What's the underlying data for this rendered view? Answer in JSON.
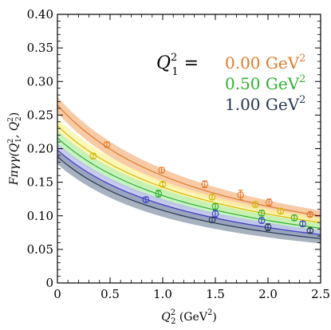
{
  "chart_data": {
    "type": "scatter",
    "xlabel": "Q",
    "xlabel_sup": "2",
    "xlabel_sub": "2",
    "xlabel_unit": " (GeV",
    "xlabel_unit_sup": "2",
    "xlabel_unit_end": ")",
    "ylabel": "Fπγγ(Q",
    "ylabel_sub1": "1",
    "ylabel_sup1": "2",
    "ylabel_mid": ", Q",
    "ylabel_sub2": "2",
    "ylabel_sup2": "2",
    "ylabel_end": ")",
    "xlim": [
      0,
      2.5
    ],
    "ylim": [
      0,
      0.4
    ],
    "xticks": [
      "0",
      "0.5",
      "1.0",
      "1.5",
      "2.0",
      "2.5"
    ],
    "yticks": [
      "0",
      "0.05",
      "0.10",
      "0.15",
      "0.20",
      "0.25",
      "0.30",
      "0.35",
      "0.40"
    ],
    "legend_title": "Q",
    "legend_title_sub": "1",
    "legend_title_sup": "2",
    "legend_eq": " =",
    "series": [
      {
        "name": "0.00 GeV",
        "name_sup": "2",
        "color": "#e07a2a",
        "band_color": "#f5b98a",
        "curve_at_zero": 0.265,
        "curve_scale": 0.66,
        "band_halfwidth": 0.012,
        "points": [
          {
            "x": 0.47,
            "y": 0.206,
            "err": 0.004
          },
          {
            "x": 0.99,
            "y": 0.168,
            "err": 0.004
          },
          {
            "x": 1.4,
            "y": 0.147,
            "err": 0.005
          },
          {
            "x": 1.74,
            "y": 0.131,
            "err": 0.007
          },
          {
            "x": 2.01,
            "y": 0.12,
            "err": 0.005
          },
          {
            "x": 2.4,
            "y": 0.102,
            "err": 0.003
          }
        ]
      },
      {
        "name": "",
        "color": "#d4b800",
        "band_color": "#fbf3a0",
        "curve_at_zero": 0.234,
        "curve_scale": 0.64,
        "band_halfwidth": 0.011,
        "points": [
          {
            "x": 0.34,
            "y": 0.189,
            "err": 0.004
          },
          {
            "x": 1.0,
            "y": 0.147,
            "err": 0.003
          },
          {
            "x": 1.47,
            "y": 0.128,
            "err": 0.004
          },
          {
            "x": 1.88,
            "y": 0.117,
            "err": 0.004
          },
          {
            "x": 2.12,
            "y": 0.107,
            "err": 0.004
          }
        ]
      },
      {
        "name": "0.50 GeV",
        "name_sup": "2",
        "color": "#2fb02f",
        "band_color": "#b6efae",
        "curve_at_zero": 0.216,
        "curve_scale": 0.66,
        "band_halfwidth": 0.011,
        "points": [
          {
            "x": 0.96,
            "y": 0.133,
            "err": 0.005
          },
          {
            "x": 1.5,
            "y": 0.114,
            "err": 0.004
          },
          {
            "x": 1.94,
            "y": 0.104,
            "err": 0.004
          },
          {
            "x": 2.25,
            "y": 0.097,
            "err": 0.004
          }
        ]
      },
      {
        "name": "",
        "color": "#3e3ec8",
        "band_color": "#b8b8ef",
        "curve_at_zero": 0.198,
        "curve_scale": 0.7,
        "band_halfwidth": 0.01,
        "points": [
          {
            "x": 0.84,
            "y": 0.124,
            "err": 0.004
          },
          {
            "x": 1.5,
            "y": 0.103,
            "err": 0.005
          },
          {
            "x": 1.94,
            "y": 0.093,
            "err": 0.004
          },
          {
            "x": 2.33,
            "y": 0.088,
            "err": 0.004
          }
        ]
      },
      {
        "name": "1.00 GeV",
        "name_sup": "2",
        "color": "#25374f",
        "band_color": "#8997ab",
        "curve_at_zero": 0.188,
        "curve_scale": 0.74,
        "band_halfwidth": 0.011,
        "points": [
          {
            "x": 1.47,
            "y": 0.094,
            "err": 0.004
          },
          {
            "x": 2.0,
            "y": 0.083,
            "err": 0.005
          },
          {
            "x": 2.4,
            "y": 0.078,
            "err": 0.003
          }
        ]
      }
    ]
  }
}
